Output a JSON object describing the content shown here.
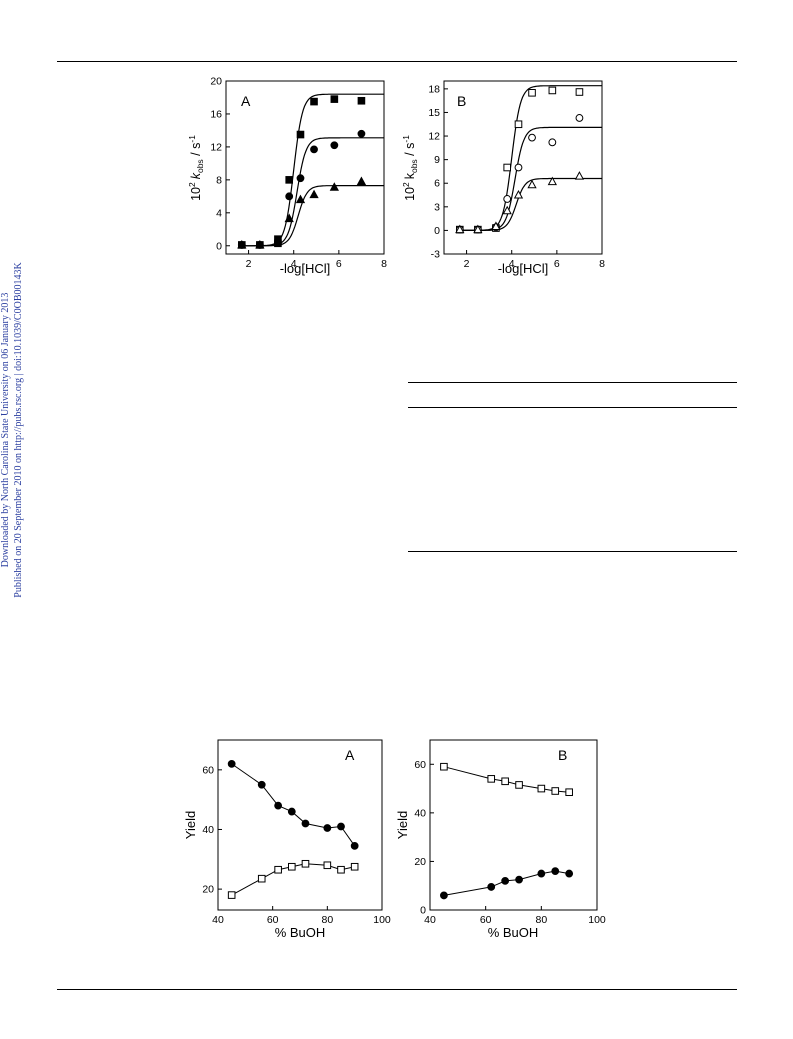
{
  "sidebar": {
    "line1": "Downloaded by North Carolina State University on 06 January 2013",
    "line2": "Published on 20 September 2010 on http://pubs.rsc.org | doi:10.1039/C0OB00143K"
  },
  "chart_data": [
    {
      "id": "fig1A",
      "type": "scatter",
      "panel_label": "A",
      "xlabel": "-log[HCl]",
      "ylabel_prefix": "10",
      "ylabel_exp": "2",
      "ylabel_k": "k",
      "ylabel_sub": "obs",
      "ylabel_unit": " / s",
      "ylabel_unit_exp": "-1",
      "xlim": [
        1,
        8
      ],
      "ylim": [
        -1,
        20
      ],
      "xticks": [
        2,
        4,
        6,
        8
      ],
      "yticks": [
        0,
        4,
        8,
        12,
        16,
        20
      ],
      "series": [
        {
          "marker": "square-filled",
          "x": [
            1.7,
            2.5,
            3.3,
            3.3,
            3.8,
            4.3,
            4.9,
            5.8,
            7.0
          ],
          "y": [
            0.1,
            0.1,
            0.3,
            0.8,
            8.0,
            13.5,
            17.5,
            17.8,
            17.6
          ],
          "fit": {
            "ymax": 18.4,
            "pka": 4.0
          }
        },
        {
          "marker": "circle-filled",
          "x": [
            1.7,
            2.5,
            3.3,
            3.8,
            4.3,
            4.9,
            5.8,
            7.0
          ],
          "y": [
            0.1,
            0.1,
            0.4,
            6.0,
            8.2,
            11.7,
            12.2,
            13.6
          ],
          "fit": {
            "ymax": 13.1,
            "pka": 4.15
          }
        },
        {
          "marker": "triangle-filled",
          "x": [
            1.7,
            2.5,
            3.3,
            3.8,
            4.3,
            4.9,
            5.8,
            7.0
          ],
          "y": [
            0.1,
            0.1,
            0.5,
            3.3,
            5.6,
            6.2,
            7.1,
            7.8
          ],
          "fit": {
            "ymax": 7.3,
            "pka": 4.2
          }
        }
      ]
    },
    {
      "id": "fig1B",
      "type": "scatter",
      "panel_label": "B",
      "xlabel": "-log[HCl]",
      "ylabel_prefix": "10",
      "ylabel_exp": "2",
      "ylabel_k": "k",
      "ylabel_sub": "obs",
      "ylabel_unit": " / s",
      "ylabel_unit_exp": "-1",
      "xlim": [
        1,
        8
      ],
      "ylim": [
        -3,
        19
      ],
      "xticks": [
        2,
        4,
        6,
        8
      ],
      "yticks": [
        -3,
        0,
        3,
        6,
        9,
        12,
        15,
        18
      ],
      "series": [
        {
          "marker": "square-open",
          "x": [
            1.7,
            2.5,
            3.3,
            3.8,
            4.3,
            4.9,
            5.8,
            7.0
          ],
          "y": [
            0.1,
            0.1,
            0.3,
            8.0,
            13.5,
            17.5,
            17.8,
            17.6
          ],
          "fit": {
            "ymax": 18.4,
            "pka": 4.0
          }
        },
        {
          "marker": "circle-open",
          "x": [
            1.7,
            2.5,
            3.3,
            3.8,
            4.3,
            4.9,
            5.8,
            7.0
          ],
          "y": [
            0.1,
            0.1,
            0.4,
            4.0,
            8.0,
            11.8,
            11.2,
            14.3
          ],
          "fit": {
            "ymax": 13.1,
            "pka": 4.15
          }
        },
        {
          "marker": "triangle-open",
          "x": [
            1.7,
            2.5,
            3.3,
            3.8,
            4.3,
            4.9,
            5.8,
            7.0
          ],
          "y": [
            0.1,
            0.1,
            0.5,
            2.5,
            4.5,
            5.8,
            6.2,
            6.9
          ],
          "fit": {
            "ymax": 6.6,
            "pka": 4.2
          }
        }
      ]
    },
    {
      "id": "fig2A",
      "type": "line",
      "panel_label": "A",
      "xlabel": "% BuOH",
      "ylabel": "Yield",
      "xlim": [
        40,
        100
      ],
      "ylim": [
        13,
        70
      ],
      "xticks": [
        40,
        60,
        80,
        100
      ],
      "yticks": [
        20,
        40,
        60
      ],
      "series": [
        {
          "marker": "circle-filled",
          "x": [
            45,
            56,
            62,
            67,
            72,
            80,
            85,
            90
          ],
          "y": [
            62,
            55,
            48,
            46,
            42,
            40.5,
            41,
            34.5
          ]
        },
        {
          "marker": "square-open",
          "x": [
            45,
            56,
            62,
            67,
            72,
            80,
            85,
            90
          ],
          "y": [
            18,
            23.5,
            26.5,
            27.5,
            28.5,
            28,
            26.5,
            27.5
          ]
        }
      ]
    },
    {
      "id": "fig2B",
      "type": "line",
      "panel_label": "B",
      "xlabel": "% BuOH",
      "ylabel": "Yield",
      "xlim": [
        40,
        100
      ],
      "ylim": [
        0,
        70
      ],
      "xticks": [
        40,
        60,
        80,
        100
      ],
      "yticks": [
        0,
        20,
        40,
        60
      ],
      "series": [
        {
          "marker": "square-open",
          "x": [
            45,
            62,
            67,
            72,
            80,
            85,
            90
          ],
          "y": [
            59,
            54,
            53,
            51.5,
            50,
            49,
            48.5
          ]
        },
        {
          "marker": "circle-filled",
          "x": [
            45,
            62,
            67,
            72,
            80,
            85,
            90
          ],
          "y": [
            6,
            9.5,
            12,
            12.5,
            15,
            16,
            15
          ]
        }
      ]
    }
  ]
}
